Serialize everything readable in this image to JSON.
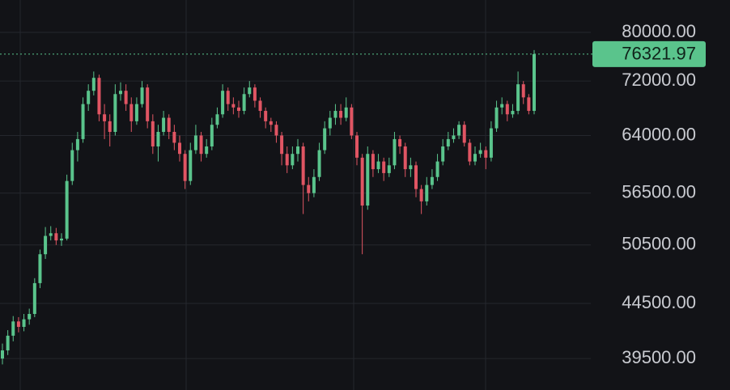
{
  "chart_data": {
    "type": "candlestick",
    "log_scale": true,
    "grid": true,
    "up_color": "#5ac48c",
    "down_color": "#e05563",
    "ylim": [
      36900,
      85800
    ],
    "yticks": [
      {
        "value": 80000,
        "label": "80000.00"
      },
      {
        "value": 72000,
        "label": "72000.00"
      },
      {
        "value": 64000,
        "label": "64000.00"
      },
      {
        "value": 56500,
        "label": "56500.00"
      },
      {
        "value": 50500,
        "label": "50500.00"
      },
      {
        "value": 44500,
        "label": "44500.00"
      },
      {
        "value": 39500,
        "label": "39500.00"
      }
    ],
    "open": [
      39500,
      40200,
      41500,
      42800,
      42300,
      43000,
      43500,
      46500,
      49500,
      51500,
      51800,
      51000,
      51200,
      58000,
      62000,
      63500,
      68500,
      70500,
      72500,
      67000,
      66000,
      64500,
      70000,
      70500,
      68500,
      66000,
      68500,
      71000,
      66000,
      62500,
      64500,
      66500,
      64500,
      63000,
      61500,
      58000,
      62000,
      64000,
      61500,
      62500,
      65500,
      67000,
      70500,
      68500,
      68000,
      67500,
      70000,
      71000,
      69000,
      67500,
      66000,
      65500,
      64000,
      61500,
      60000,
      61500,
      62500,
      57500,
      56500,
      58500,
      62000,
      65000,
      66500,
      67500,
      66500,
      68000,
      64000,
      61000,
      55000,
      61500,
      59500,
      60500,
      59000,
      60000,
      63500,
      62500,
      59500,
      60000,
      57000,
      55500,
      57500,
      58500,
      60500,
      62500,
      63500,
      64000,
      65500,
      63000,
      60500,
      61500,
      62000,
      61000,
      65000,
      68000,
      68500,
      67000,
      67500,
      71500,
      69500,
      67500
    ],
    "high": [
      40800,
      42000,
      43300,
      43200,
      43500,
      44000,
      47000,
      50000,
      52500,
      52600,
      52400,
      51800,
      58800,
      63000,
      64500,
      69500,
      71500,
      73500,
      73000,
      68500,
      67000,
      71500,
      71800,
      71500,
      69500,
      69500,
      72000,
      71500,
      67000,
      65500,
      67500,
      67000,
      65500,
      64000,
      62000,
      63000,
      65500,
      64500,
      63500,
      66500,
      68000,
      71500,
      71000,
      69500,
      69000,
      71000,
      72000,
      71500,
      69500,
      68000,
      66500,
      66000,
      64500,
      62500,
      62500,
      63500,
      63000,
      58500,
      59500,
      63000,
      66000,
      67500,
      68500,
      68500,
      69500,
      68500,
      64500,
      61500,
      62500,
      62000,
      61500,
      61000,
      61000,
      64500,
      64000,
      63000,
      61000,
      60500,
      57500,
      58500,
      59500,
      61500,
      63500,
      64500,
      65000,
      66000,
      66000,
      63500,
      62500,
      63000,
      62500,
      66000,
      69000,
      69500,
      69000,
      68500,
      73500,
      72000,
      70000,
      77000
    ],
    "low": [
      39000,
      39800,
      41000,
      41800,
      41900,
      42500,
      43200,
      46000,
      49000,
      51000,
      50500,
      50400,
      51000,
      57500,
      60500,
      63000,
      67500,
      69800,
      66000,
      63500,
      62500,
      64000,
      69000,
      67500,
      64500,
      65500,
      68000,
      65000,
      61500,
      60500,
      64000,
      63500,
      62000,
      60500,
      57000,
      57500,
      61500,
      60500,
      61000,
      62000,
      65000,
      66500,
      67500,
      67000,
      66500,
      67000,
      69500,
      68000,
      66500,
      65000,
      64500,
      63000,
      60000,
      59000,
      59500,
      60500,
      54000,
      55500,
      56000,
      58000,
      61500,
      64000,
      65500,
      65500,
      66000,
      63500,
      60000,
      49500,
      54500,
      58500,
      59000,
      58000,
      58500,
      59500,
      61500,
      58500,
      58500,
      56000,
      54000,
      55000,
      57000,
      58000,
      60000,
      62000,
      63000,
      63500,
      62500,
      60000,
      60000,
      61000,
      59500,
      60500,
      64500,
      67000,
      66000,
      66500,
      67000,
      68500,
      67000,
      67000
    ],
    "close": [
      40200,
      41500,
      42800,
      42300,
      43000,
      43500,
      46500,
      49500,
      51500,
      51800,
      51000,
      51200,
      58000,
      62000,
      63500,
      68500,
      70500,
      72500,
      67000,
      66000,
      64500,
      70000,
      70500,
      68500,
      66000,
      68500,
      71000,
      66000,
      62500,
      64500,
      66500,
      64500,
      63000,
      61500,
      58000,
      62000,
      64000,
      61500,
      62500,
      65500,
      67000,
      70500,
      68500,
      68000,
      67500,
      70000,
      71000,
      69000,
      67500,
      66000,
      65500,
      64000,
      61500,
      60000,
      61500,
      62500,
      57500,
      56500,
      58500,
      62000,
      65000,
      66500,
      67500,
      66500,
      68000,
      64000,
      61000,
      55000,
      61500,
      59500,
      60500,
      59000,
      60000,
      63500,
      62500,
      59500,
      60000,
      57000,
      55500,
      57500,
      58500,
      60500,
      62500,
      63500,
      64000,
      65500,
      63000,
      60500,
      61500,
      62000,
      61000,
      65000,
      68000,
      68500,
      67000,
      67500,
      71500,
      69500,
      67500,
      76321.97
    ]
  }
}
